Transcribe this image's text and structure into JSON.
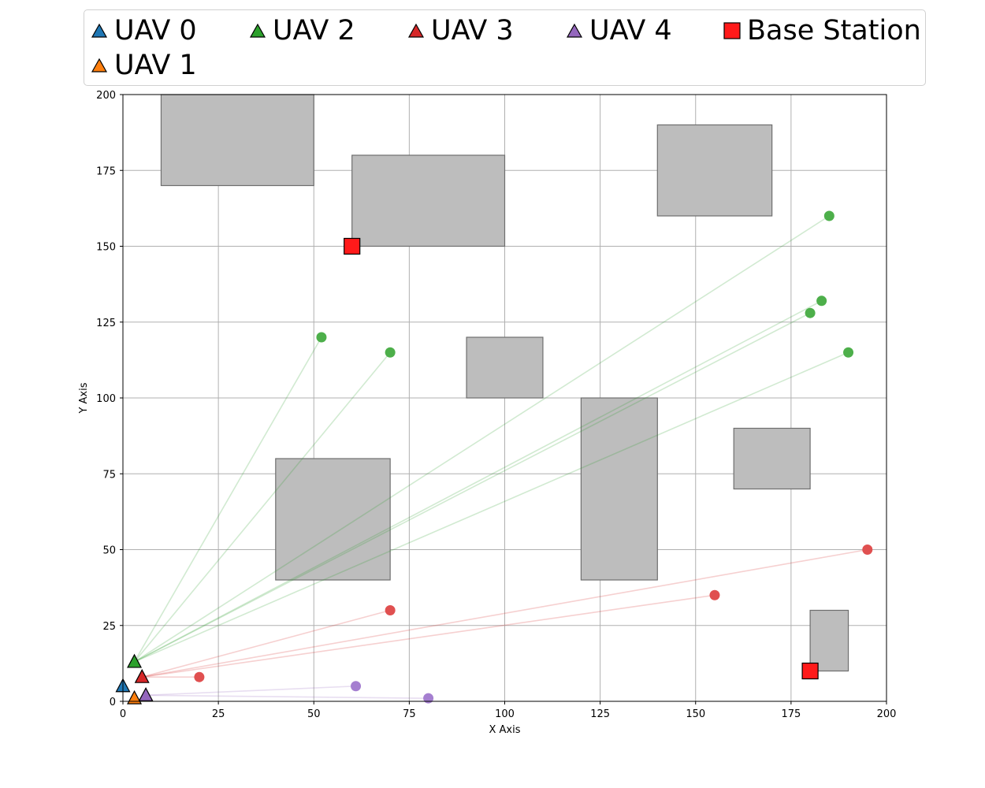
{
  "chart_data": {
    "type": "scatter",
    "title": "",
    "xlabel": "X Axis",
    "ylabel": "Y Axis",
    "xlim": [
      0,
      200
    ],
    "ylim": [
      0,
      200
    ],
    "x_ticks": [
      "0",
      "25",
      "50",
      "75",
      "100",
      "125",
      "150",
      "175",
      "200"
    ],
    "y_ticks": [
      "0",
      "25",
      "50",
      "75",
      "100",
      "125",
      "150",
      "175",
      "200"
    ],
    "grid": true,
    "legend_placement": "top",
    "obstacles": [
      {
        "x0": 10,
        "y0": 170,
        "x1": 50,
        "y1": 200
      },
      {
        "x0": 60,
        "y0": 150,
        "x1": 100,
        "y1": 180
      },
      {
        "x0": 140,
        "y0": 160,
        "x1": 170,
        "y1": 190
      },
      {
        "x0": 90,
        "y0": 100,
        "x1": 110,
        "y1": 120
      },
      {
        "x0": 40,
        "y0": 40,
        "x1": 70,
        "y1": 80
      },
      {
        "x0": 120,
        "y0": 40,
        "x1": 140,
        "y1": 100
      },
      {
        "x0": 160,
        "y0": 70,
        "x1": 180,
        "y1": 90
      },
      {
        "x0": 180,
        "y0": 10,
        "x1": 190,
        "y1": 30
      }
    ],
    "series": [
      {
        "name": "UAV 0",
        "color": "#1f77b4",
        "uav": [
          0,
          5
        ],
        "targets": []
      },
      {
        "name": "UAV 1",
        "color": "#ff7f0e",
        "uav": [
          3,
          1
        ],
        "targets": []
      },
      {
        "name": "UAV 2",
        "color": "#2ca02c",
        "target_color": "#4daf4a",
        "uav": [
          3,
          13
        ],
        "targets": [
          [
            52,
            120
          ],
          [
            70,
            115
          ],
          [
            185,
            160
          ],
          [
            183,
            132
          ],
          [
            180,
            128
          ],
          [
            190,
            115
          ]
        ]
      },
      {
        "name": "UAV 3",
        "color": "#d62728",
        "target_color": "#e05050",
        "uav": [
          5,
          8
        ],
        "targets": [
          [
            20,
            8
          ],
          [
            70,
            30
          ],
          [
            155,
            35
          ],
          [
            195,
            50
          ]
        ]
      },
      {
        "name": "UAV 4",
        "color": "#9467bd",
        "target_color": "#a57fd0",
        "uav": [
          6,
          2
        ],
        "targets": [
          [
            61,
            5
          ],
          [
            80,
            1
          ]
        ]
      }
    ],
    "base_stations": {
      "name": "Base Station",
      "color": "#ff1a1a",
      "points": [
        [
          60,
          150
        ],
        [
          180,
          10
        ]
      ]
    }
  },
  "legend": {
    "entries": [
      {
        "label": "UAV 0",
        "color": "#1f77b4",
        "marker": "triangle"
      },
      {
        "label": "UAV 1",
        "color": "#ff7f0e",
        "marker": "triangle"
      },
      {
        "label": "UAV 2",
        "color": "#2ca02c",
        "marker": "triangle"
      },
      {
        "label": "UAV 3",
        "color": "#d62728",
        "marker": "triangle"
      },
      {
        "label": "UAV 4",
        "color": "#9467bd",
        "marker": "triangle"
      },
      {
        "label": "Base Station",
        "color": "#ff1a1a",
        "marker": "square"
      }
    ]
  }
}
